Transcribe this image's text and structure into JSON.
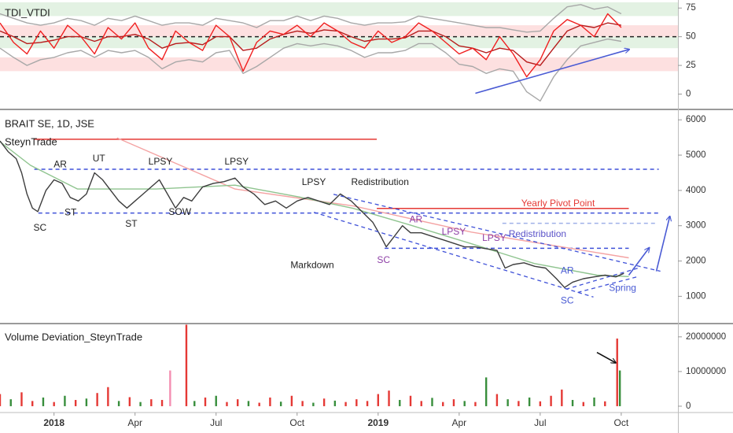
{
  "chart_data": [
    {
      "type": "line",
      "title": "TDI_VTDI",
      "xlim": [
        -2,
        23.1
      ],
      "ylim": [
        -12,
        82
      ],
      "yticks": [
        0,
        25,
        50,
        75
      ],
      "bands": [
        {
          "from": 68,
          "to": 80,
          "color": "#e3f2e3"
        },
        {
          "from": 50,
          "to": 60,
          "color": "#fde0e0"
        },
        {
          "from": 40,
          "to": 50,
          "color": "#e3f2e3"
        },
        {
          "from": 20,
          "to": 32,
          "color": "#fde0e0"
        }
      ],
      "levels": [
        {
          "value": 50,
          "from": -2,
          "to": 23.1,
          "color": "#222222",
          "dash": true
        }
      ],
      "x": [
        -2,
        -1.5,
        -1,
        -0.5,
        0,
        0.5,
        1,
        1.5,
        2,
        2.5,
        3,
        3.5,
        4,
        4.5,
        5,
        5.5,
        6,
        6.5,
        7,
        7.5,
        8,
        8.5,
        9,
        9.5,
        10,
        10.5,
        11,
        11.5,
        12,
        12.5,
        13,
        13.5,
        14,
        14.5,
        15,
        15.5,
        16,
        16.5,
        17,
        17.5,
        18,
        18.5,
        19,
        19.5,
        20,
        20.5,
        21
      ],
      "series": [
        {
          "color": "#a8a8a8",
          "values": [
            70,
            66,
            62,
            60,
            62,
            66,
            64,
            60,
            66,
            64,
            68,
            64,
            60,
            62,
            62,
            60,
            66,
            64,
            62,
            58,
            64,
            64,
            68,
            64,
            68,
            66,
            62,
            60,
            62,
            62,
            63,
            68,
            66,
            64,
            62,
            60,
            58,
            58,
            56,
            54,
            55,
            66,
            76,
            78,
            74,
            76,
            70
          ]
        },
        {
          "color": "#a8a8a8",
          "values": [
            40,
            32,
            25,
            30,
            32,
            36,
            38,
            32,
            38,
            36,
            38,
            32,
            22,
            28,
            30,
            28,
            36,
            38,
            18,
            24,
            32,
            40,
            44,
            42,
            44,
            42,
            38,
            32,
            36,
            36,
            38,
            44,
            44,
            36,
            26,
            24,
            18,
            22,
            20,
            2,
            -6,
            15,
            30,
            42,
            45,
            48,
            46
          ]
        },
        {
          "color": "#b71c1c",
          "values": [
            55,
            50,
            44,
            45,
            47,
            50,
            50,
            46,
            50,
            50,
            52,
            48,
            40,
            44,
            45,
            43,
            50,
            50,
            38,
            40,
            48,
            52,
            55,
            53,
            56,
            55,
            50,
            46,
            48,
            48,
            49,
            55,
            55,
            50,
            42,
            40,
            36,
            40,
            38,
            28,
            25,
            40,
            55,
            60,
            58,
            62,
            60
          ]
        },
        {
          "color": "#f02020",
          "values": [
            62,
            45,
            35,
            55,
            40,
            60,
            50,
            35,
            58,
            48,
            62,
            40,
            30,
            55,
            45,
            38,
            60,
            50,
            20,
            45,
            55,
            52,
            60,
            50,
            62,
            55,
            45,
            40,
            55,
            45,
            50,
            62,
            55,
            45,
            35,
            40,
            30,
            50,
            35,
            15,
            30,
            55,
            65,
            60,
            50,
            70,
            58
          ]
        }
      ],
      "lines": [
        {
          "points": [
            [
              15.6,
              0.7
            ],
            [
              21.3,
              39
            ]
          ],
          "color": "#4a5bd4",
          "dash": false,
          "arrow": true
        }
      ]
    },
    {
      "type": "line",
      "title": "BRAIT SE, 1D, JSE",
      "subtitle": "SteynTrade",
      "xlim": [
        -2,
        23.1
      ],
      "ylim": [
        250,
        6250
      ],
      "yticks": [
        1000,
        2000,
        3000,
        4000,
        5000,
        6000
      ],
      "x": [
        -2,
        -1.7,
        -1.4,
        -1.2,
        -1,
        -0.8,
        -0.6,
        -0.3,
        0,
        0.3,
        0.6,
        0.9,
        1.2,
        1.5,
        1.8,
        2.1,
        2.4,
        2.7,
        3,
        3.3,
        3.6,
        3.9,
        4.2,
        4.5,
        4.8,
        5.1,
        5.5,
        5.9,
        6.3,
        6.7,
        7,
        7.4,
        7.8,
        8.2,
        8.6,
        9,
        9.4,
        9.8,
        10.2,
        10.6,
        11,
        11.4,
        11.8,
        12.1,
        12.3,
        12.6,
        12.9,
        13.2,
        13.6,
        14,
        14.4,
        14.8,
        15.2,
        15.6,
        16,
        16.4,
        16.7,
        17,
        17.4,
        17.8,
        18.2,
        18.6,
        18.9,
        19.2,
        19.6,
        20,
        20.4,
        20.8,
        21.1
      ],
      "series": [
        {
          "color": "#f4a3a3",
          "x": [
            2.33,
            6.7,
            11.08,
            15.45,
            21.28
          ],
          "values": [
            5490,
            4040,
            3560,
            2820,
            2090
          ]
        },
        {
          "color": "#8fc48f",
          "x": [
            -2,
            -0.87,
            0.87,
            3.79,
            6.7,
            9.04,
            11.08,
            13.1,
            15.45,
            17.78,
            20.1,
            21.28
          ],
          "values": [
            5380,
            4710,
            4040,
            4040,
            4150,
            3820,
            3490,
            3040,
            2490,
            1930,
            1600,
            1560
          ]
        },
        {
          "color": "#3d3d3d",
          "values": [
            5400,
            5100,
            4900,
            4500,
            3900,
            3500,
            3400,
            4000,
            4300,
            4200,
            3800,
            3700,
            3900,
            4500,
            4300,
            4000,
            3700,
            3500,
            3700,
            3900,
            4100,
            4300,
            3900,
            3500,
            3800,
            3700,
            4100,
            4200,
            4250,
            4350,
            4100,
            3900,
            3600,
            3700,
            3500,
            3700,
            3800,
            3700,
            3600,
            3900,
            3700,
            3400,
            3100,
            2700,
            2400,
            2700,
            3000,
            2800,
            2800,
            2700,
            2600,
            2500,
            2400,
            2400,
            2350,
            2300,
            1800,
            1900,
            1950,
            1850,
            1800,
            1500,
            1250,
            1400,
            1500,
            1550,
            1600,
            1550,
            1650
          ]
        }
      ],
      "levels": [
        {
          "value": 5450,
          "from": -0.73,
          "to": 11.95,
          "color": "#e53935",
          "dash": false
        },
        {
          "value": 4600,
          "from": -0.73,
          "to": 22.39,
          "color": "#3f51d8",
          "dash": true
        },
        {
          "value": 3360,
          "from": -0.58,
          "to": 22.39,
          "color": "#3f51d8",
          "dash": true
        },
        {
          "value": 3490,
          "from": 11.95,
          "to": 21.28,
          "color": "#e53935",
          "dash": false
        },
        {
          "value": 3070,
          "from": 16.6,
          "to": 22.3,
          "color": "#9fb0e8",
          "dash": true
        },
        {
          "value": 2360,
          "from": 12.24,
          "to": 21.28,
          "color": "#3f51d8",
          "dash": true
        }
      ],
      "lines": [
        {
          "points": [
            [
              10.35,
              3890
            ],
            [
              22.45,
              1710
            ]
          ],
          "color": "#3f51d8",
          "dash": true,
          "arrow": false
        },
        {
          "points": [
            [
              9.62,
              3380
            ],
            [
              19.97,
              980
            ]
          ],
          "color": "#3f51d8",
          "dash": true,
          "arrow": false
        },
        {
          "points": [
            [
              18.95,
              1200
            ],
            [
              21.72,
              1820
            ]
          ],
          "color": "#3f51d8",
          "dash": true,
          "arrow": false
        },
        {
          "points": [
            [
              19.39,
              1110
            ],
            [
              21.63,
              1560
            ]
          ],
          "color": "#3f51d8",
          "dash": true,
          "arrow": false
        },
        {
          "points": [
            [
              21.28,
              1600
            ],
            [
              22.04,
              2380
            ]
          ],
          "color": "#4a5bd4",
          "dash": false,
          "arrow": true
        },
        {
          "points": [
            [
              22.3,
              1710
            ],
            [
              22.8,
              3270
            ]
          ],
          "color": "#4a5bd4",
          "dash": false,
          "arrow": true
        }
      ],
      "annotations": [
        {
          "text": "SC",
          "x": -0.52,
          "y": 2930,
          "color": "#222222"
        },
        {
          "text": "AR",
          "x": 0.23,
          "y": 4730,
          "color": "#222222"
        },
        {
          "text": "UT",
          "x": 1.66,
          "y": 4890,
          "color": "#222222"
        },
        {
          "text": "ST",
          "x": 0.61,
          "y": 3360,
          "color": "#222222"
        },
        {
          "text": "ST",
          "x": 2.86,
          "y": 3040,
          "color": "#222222"
        },
        {
          "text": "LPSY",
          "x": 3.94,
          "y": 4800,
          "color": "#222222"
        },
        {
          "text": "SOW",
          "x": 4.66,
          "y": 3380,
          "color": "#222222"
        },
        {
          "text": "LPSY",
          "x": 6.76,
          "y": 4800,
          "color": "#222222"
        },
        {
          "text": "LPSY",
          "x": 9.62,
          "y": 4220,
          "color": "#222222"
        },
        {
          "text": "Redistribution",
          "x": 12.07,
          "y": 4220,
          "color": "#222222"
        },
        {
          "text": "Markdown",
          "x": 9.56,
          "y": 1870,
          "color": "#222222"
        },
        {
          "text": "SC",
          "x": 12.2,
          "y": 2020,
          "color": "#8e3fa6"
        },
        {
          "text": "AR",
          "x": 13.4,
          "y": 3160,
          "color": "#8e3fa6"
        },
        {
          "text": "LPSY",
          "x": 14.8,
          "y": 2820,
          "color": "#8e3fa6"
        },
        {
          "text": "LPSY",
          "x": 16.3,
          "y": 2640,
          "color": "#8e3fa6"
        },
        {
          "text": "Redistribution",
          "x": 17.9,
          "y": 2750,
          "color": "#5a52c8"
        },
        {
          "text": "Yearly Pivot Point",
          "x": 18.66,
          "y": 3620,
          "color": "#e53935"
        },
        {
          "text": "AR",
          "x": 19.0,
          "y": 1710,
          "color": "#4a5bd4"
        },
        {
          "text": "SC",
          "x": 19.0,
          "y": 870,
          "color": "#4a5bd4"
        },
        {
          "text": "Spring",
          "x": 21.05,
          "y": 1220,
          "color": "#4a5bd4"
        }
      ]
    },
    {
      "type": "bar",
      "title": "Volume Deviation_SteynTrade",
      "xlim": [
        -2,
        23.1
      ],
      "ylim": [
        -1600000,
        23600000
      ],
      "yticks": [
        0,
        10000000,
        20000000
      ],
      "xticks": [
        {
          "value": 0,
          "label": "2018"
        },
        {
          "value": 3,
          "label": "Apr"
        },
        {
          "value": 6,
          "label": "Jul"
        },
        {
          "value": 9,
          "label": "Oct"
        },
        {
          "value": 12,
          "label": "2019"
        },
        {
          "value": 15,
          "label": "Apr"
        },
        {
          "value": 18,
          "label": "Jul"
        },
        {
          "value": 21,
          "label": "Oct"
        }
      ],
      "x": [
        -2,
        -1.6,
        -1.2,
        -0.8,
        -0.4,
        0,
        0.4,
        0.8,
        1.2,
        1.6,
        2,
        2.4,
        2.8,
        3.2,
        3.6,
        4,
        4.3,
        4.9,
        5.2,
        5.6,
        6,
        6.4,
        6.8,
        7.2,
        7.6,
        8,
        8.4,
        8.8,
        9.2,
        9.6,
        10,
        10.4,
        10.8,
        11.2,
        11.6,
        12,
        12.4,
        12.8,
        13.2,
        13.6,
        14,
        14.4,
        14.8,
        15.2,
        15.6,
        16,
        16.4,
        16.8,
        17.2,
        17.6,
        18,
        18.4,
        18.8,
        19.2,
        19.6,
        20,
        20.4,
        20.85,
        20.95
      ],
      "values": [
        3500000,
        2000000,
        4000000,
        1500000,
        2500000,
        1200000,
        3000000,
        1800000,
        2200000,
        3800000,
        5500000,
        1500000,
        2600000,
        1200000,
        2000000,
        1800000,
        10300000,
        23500000,
        1500000,
        2500000,
        3000000,
        1200000,
        2000000,
        1500000,
        1000000,
        2500000,
        1300000,
        3000000,
        1500000,
        1000000,
        2200000,
        1600000,
        1200000,
        2000000,
        1500000,
        3500000,
        4500000,
        1800000,
        3000000,
        1500000,
        2400000,
        1200000,
        2000000,
        1500000,
        1200000,
        8300000,
        3500000,
        2000000,
        1500000,
        2500000,
        1400000,
        3000000,
        4800000,
        1800000,
        1200000,
        2500000,
        1400000,
        19500000,
        10300000
      ],
      "colors": [
        "#e53935",
        "#388e3c",
        "#e53935",
        "#e53935",
        "#388e3c",
        "#e53935",
        "#388e3c",
        "#e53935",
        "#388e3c",
        "#e53935",
        "#e53935",
        "#388e3c",
        "#e53935",
        "#388e3c",
        "#e53935",
        "#e53935",
        "#f48fb1",
        "#e53935",
        "#388e3c",
        "#e53935",
        "#388e3c",
        "#e53935",
        "#e53935",
        "#388e3c",
        "#e53935",
        "#e53935",
        "#388e3c",
        "#e53935",
        "#e53935",
        "#388e3c",
        "#e53935",
        "#388e3c",
        "#e53935",
        "#e53935",
        "#e53935",
        "#e53935",
        "#e53935",
        "#388e3c",
        "#e53935",
        "#e53935",
        "#388e3c",
        "#e53935",
        "#e53935",
        "#388e3c",
        "#e53935",
        "#388e3c",
        "#e53935",
        "#388e3c",
        "#e53935",
        "#388e3c",
        "#e53935",
        "#e53935",
        "#e53935",
        "#388e3c",
        "#e53935",
        "#388e3c",
        "#e53935",
        "#e53935",
        "#388e3c"
      ],
      "lines": [
        {
          "points": [
            [
              20.1,
              15500000
            ],
            [
              20.8,
              12500000
            ]
          ],
          "color": "#111111",
          "dash": false,
          "arrow": true
        }
      ]
    }
  ]
}
